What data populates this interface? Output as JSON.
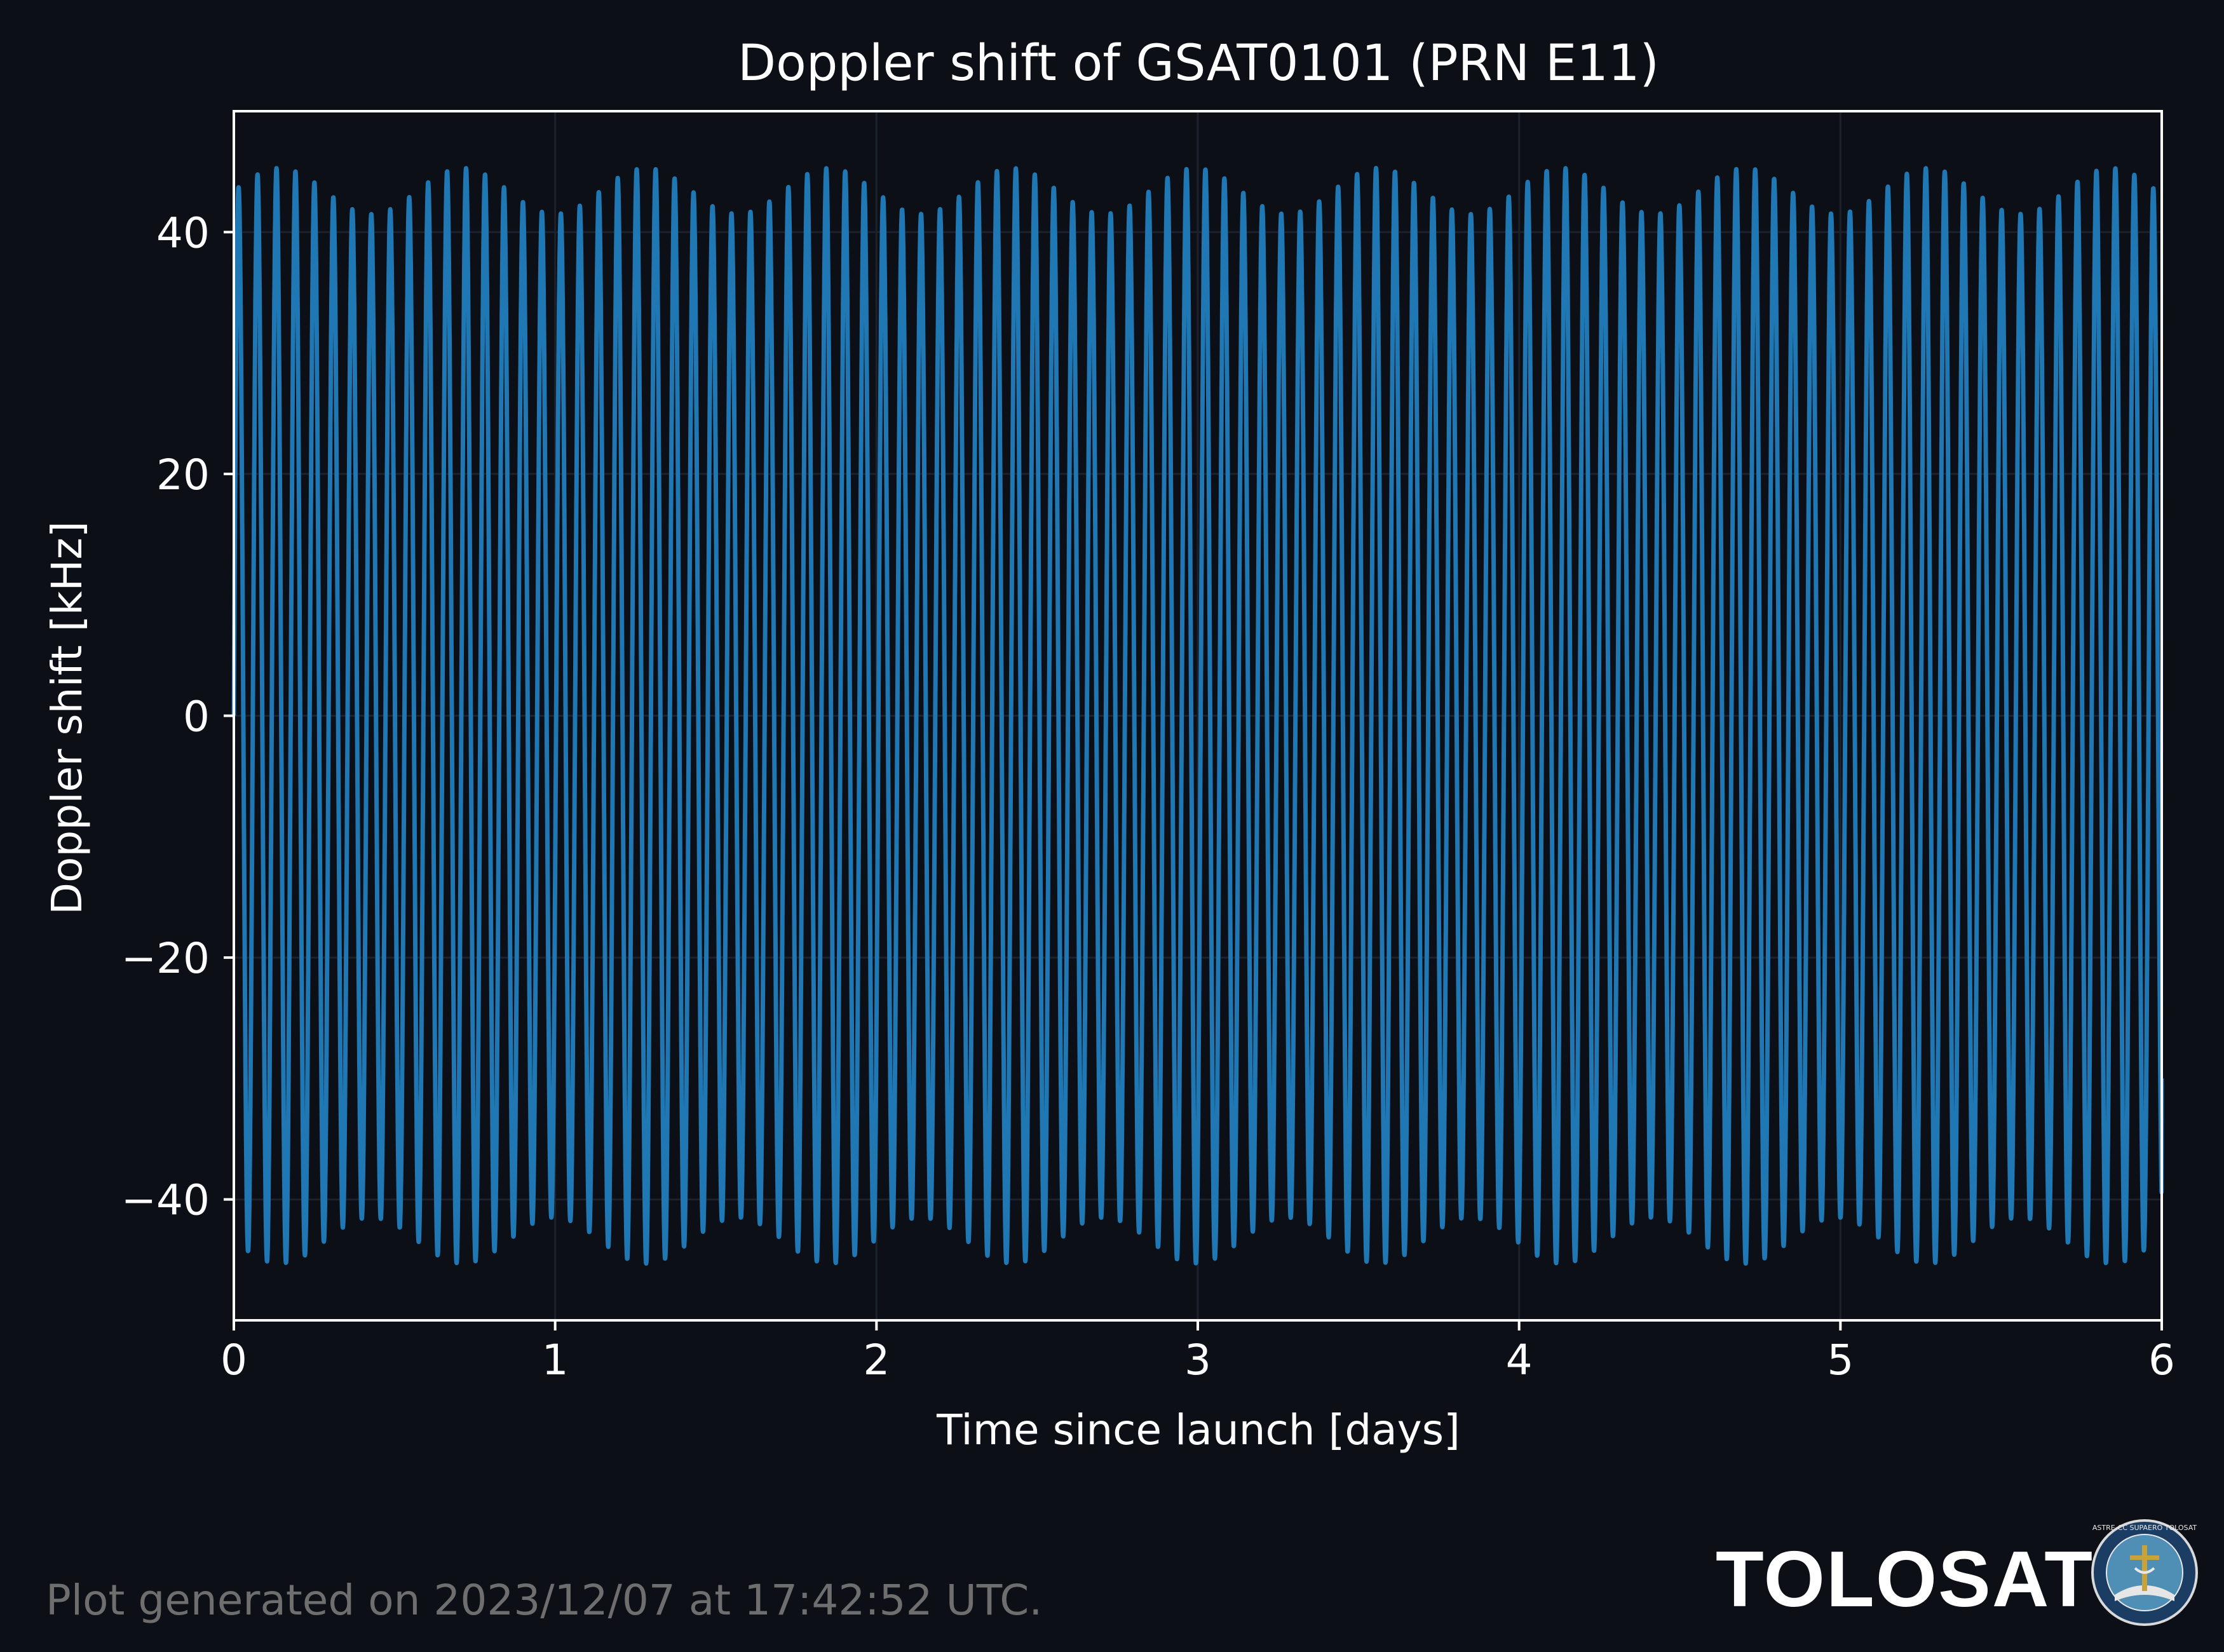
{
  "chart_data": {
    "type": "line",
    "title": "Doppler shift of GSAT0101 (PRN E11)",
    "xlabel": "Time since launch [days]",
    "ylabel": "Doppler shift [kHz]",
    "xlim": [
      0,
      6
    ],
    "ylim": [
      -50,
      50
    ],
    "x_ticks": [
      0,
      1,
      2,
      3,
      4,
      5,
      6
    ],
    "x_tick_labels": [
      "0",
      "1",
      "2",
      "3",
      "4",
      "5",
      "6"
    ],
    "y_ticks": [
      -40,
      -20,
      0,
      20,
      40
    ],
    "y_tick_labels": [
      "−40",
      "−20",
      "0",
      "20",
      "40"
    ],
    "grid": true,
    "legend": "none",
    "series": [
      {
        "color": "#1f77b4",
        "model": "oscillation",
        "period_days": 0.059,
        "amplitude_min": 41.5,
        "amplitude_max": 45.3,
        "envelope_period_days": 0.57,
        "start_value": 0,
        "end_value": -30
      }
    ]
  },
  "footer": {
    "generated": "Plot generated on 2023/12/07 at 17:42:52 UTC.",
    "brand": "TOLOSAT",
    "logo_icon": "tolosat-seal-icon",
    "logo_text": "ASTRE-CC SUPAERO TOLOSAT"
  },
  "colors": {
    "background": "#0c0f16",
    "text": "#ffffff",
    "line": "#1f77b4",
    "grid": "#1c212b",
    "footer_text": "#6e6e6e"
  }
}
